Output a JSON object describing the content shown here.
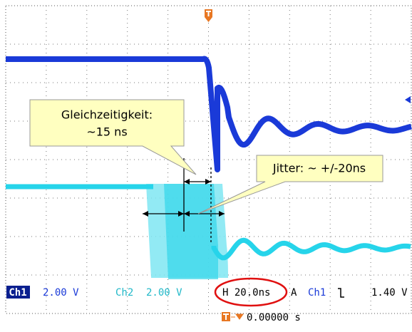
{
  "screen": {
    "callouts": [
      {
        "lines": [
          "Gleichzeitigkeit:",
          "~15 ns"
        ]
      },
      {
        "lines": [
          "Jitter: ~ +/-20ns"
        ]
      }
    ],
    "status": {
      "ch1_label": "Ch1",
      "ch1_scale": "2.00 V",
      "ch2_label": "Ch2",
      "ch2_scale": "2.00 V",
      "timebase": "H 20.0ns",
      "trigger_mode": "A",
      "trigger_source": "Ch1",
      "trigger_level": "1.40 V",
      "trigger_position": "0.00000 s"
    }
  }
}
